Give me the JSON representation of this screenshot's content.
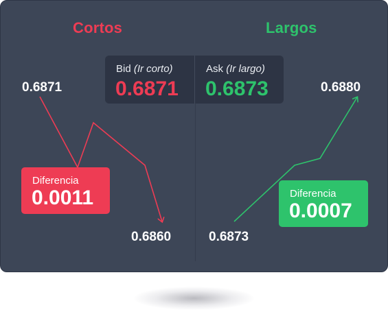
{
  "headings": {
    "short": "Cortos",
    "long": "Largos"
  },
  "quote": {
    "bid_label": "Bid",
    "bid_sub": "(Ir corto)",
    "bid_value": "0.6871",
    "ask_label": "Ask",
    "ask_sub": "(Ir largo)",
    "ask_value": "0.6873"
  },
  "short_side": {
    "entry": "0.6871",
    "exit": "0.6860",
    "diff_label": "Diferencia",
    "diff_value": "0.0011"
  },
  "long_side": {
    "entry": "0.6873",
    "exit": "0.6880",
    "diff_label": "Diferencia",
    "diff_value": "0.0007"
  },
  "colors": {
    "background": "#3d4657",
    "quote_box": "#2d3444",
    "red": "#ee3c54",
    "green": "#2ec36c",
    "text": "#ffffff"
  }
}
